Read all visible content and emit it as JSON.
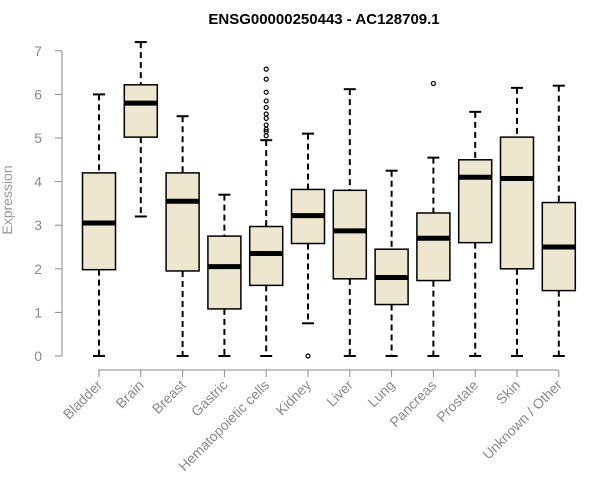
{
  "chart_data": {
    "type": "boxplot",
    "title": "ENSG00000250443 - AC128709.1",
    "xlabel": "",
    "ylabel": "Expression",
    "ylim": [
      0,
      7.3
    ],
    "yticks": [
      0,
      1,
      2,
      3,
      4,
      5,
      6,
      7
    ],
    "grid": false,
    "legend": "none",
    "colors": {
      "box_fill": "#ede7cf",
      "box_stroke": "#000000",
      "median": "#000000",
      "axis": "#8a8a8a",
      "tick_text": "#8a8a8a"
    },
    "categories": [
      "Bladder",
      "Brain",
      "Breast",
      "Gastric",
      "Hematopoietic cells",
      "Kidney",
      "Liver",
      "Lung",
      "Pancreas",
      "Prostate",
      "Skin",
      "Unknown / Other"
    ],
    "boxes": [
      {
        "category": "Bladder",
        "whisker_low": 0,
        "q1": 1.98,
        "median": 3.05,
        "q3": 4.2,
        "whisker_high": 6.0,
        "outliers": []
      },
      {
        "category": "Brain",
        "whisker_low": 3.2,
        "q1": 5.02,
        "median": 5.8,
        "q3": 6.22,
        "whisker_high": 7.2,
        "outliers": []
      },
      {
        "category": "Breast",
        "whisker_low": 0,
        "q1": 1.95,
        "median": 3.55,
        "q3": 4.2,
        "whisker_high": 5.5,
        "outliers": []
      },
      {
        "category": "Gastric",
        "whisker_low": 0,
        "q1": 1.08,
        "median": 2.05,
        "q3": 2.75,
        "whisker_high": 3.7,
        "outliers": []
      },
      {
        "category": "Hematopoietic cells",
        "whisker_low": 0,
        "q1": 1.62,
        "median": 2.35,
        "q3": 2.97,
        "whisker_high": 4.95,
        "outliers": [
          5.05,
          5.15,
          5.2,
          5.3,
          5.45,
          5.55,
          5.7,
          5.85,
          6.05,
          6.35,
          6.58
        ]
      },
      {
        "category": "Kidney",
        "whisker_low": 0.75,
        "q1": 2.58,
        "median": 3.22,
        "q3": 3.82,
        "whisker_high": 5.1,
        "outliers": [
          0
        ]
      },
      {
        "category": "Liver",
        "whisker_low": 0,
        "q1": 1.77,
        "median": 2.87,
        "q3": 3.8,
        "whisker_high": 6.12,
        "outliers": []
      },
      {
        "category": "Lung",
        "whisker_low": 0,
        "q1": 1.18,
        "median": 1.8,
        "q3": 2.45,
        "whisker_high": 4.25,
        "outliers": []
      },
      {
        "category": "Pancreas",
        "whisker_low": 0,
        "q1": 1.73,
        "median": 2.7,
        "q3": 3.28,
        "whisker_high": 4.55,
        "outliers": [
          6.25
        ]
      },
      {
        "category": "Prostate",
        "whisker_low": 0,
        "q1": 2.6,
        "median": 4.1,
        "q3": 4.5,
        "whisker_high": 5.6,
        "outliers": []
      },
      {
        "category": "Skin",
        "whisker_low": 0,
        "q1": 2.0,
        "median": 4.07,
        "q3": 5.02,
        "whisker_high": 6.15,
        "outliers": []
      },
      {
        "category": "Unknown / Other",
        "whisker_low": 0,
        "q1": 1.5,
        "median": 2.5,
        "q3": 3.52,
        "whisker_high": 6.2,
        "outliers": []
      }
    ]
  }
}
